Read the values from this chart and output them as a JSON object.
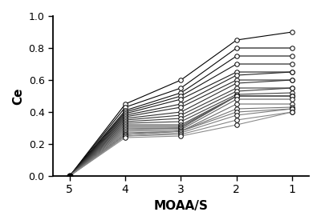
{
  "x_values": [
    5,
    4,
    3,
    2,
    1
  ],
  "patient_data": [
    [
      0,
      0.45,
      0.6,
      0.85,
      0.9
    ],
    [
      0,
      0.43,
      0.55,
      0.8,
      0.8
    ],
    [
      0,
      0.41,
      0.52,
      0.75,
      0.75
    ],
    [
      0,
      0.4,
      0.5,
      0.7,
      0.7
    ],
    [
      0,
      0.39,
      0.48,
      0.65,
      0.65
    ],
    [
      0,
      0.38,
      0.45,
      0.63,
      0.65
    ],
    [
      0,
      0.37,
      0.43,
      0.6,
      0.6
    ],
    [
      0,
      0.36,
      0.4,
      0.58,
      0.6
    ],
    [
      0,
      0.35,
      0.38,
      0.55,
      0.55
    ],
    [
      0,
      0.34,
      0.36,
      0.53,
      0.55
    ],
    [
      0,
      0.33,
      0.34,
      0.51,
      0.52
    ],
    [
      0,
      0.32,
      0.32,
      0.5,
      0.5
    ],
    [
      0,
      0.31,
      0.31,
      0.5,
      0.5
    ],
    [
      0,
      0.3,
      0.3,
      0.5,
      0.5
    ],
    [
      0,
      0.29,
      0.3,
      0.5,
      0.5
    ],
    [
      0,
      0.28,
      0.29,
      0.48,
      0.48
    ],
    [
      0,
      0.27,
      0.28,
      0.45,
      0.45
    ],
    [
      0,
      0.26,
      0.28,
      0.42,
      0.43
    ],
    [
      0,
      0.26,
      0.28,
      0.4,
      0.42
    ],
    [
      0,
      0.25,
      0.27,
      0.38,
      0.42
    ],
    [
      0,
      0.25,
      0.26,
      0.35,
      0.4
    ],
    [
      0,
      0.24,
      0.25,
      0.32,
      0.4
    ]
  ],
  "xlim": [
    5.3,
    0.7
  ],
  "ylim": [
    -0.02,
    1.0
  ],
  "xticks": [
    5,
    4,
    3,
    2,
    1
  ],
  "yticks": [
    0.0,
    0.2,
    0.4,
    0.6,
    0.8,
    1.0
  ],
  "xlabel": "MOAA/S",
  "ylabel": "Ce",
  "markersize": 4,
  "linewidth": 0.8,
  "figsize": [
    4.0,
    2.8
  ],
  "dpi": 100
}
